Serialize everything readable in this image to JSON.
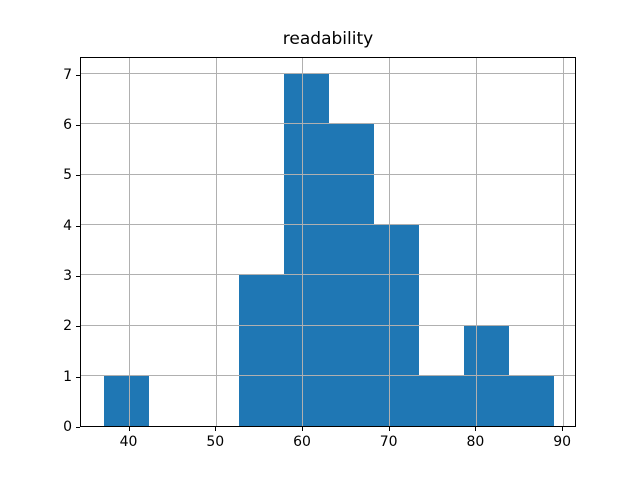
{
  "figure": {
    "title": "readability",
    "background_color": "#ffffff"
  },
  "chart_data": {
    "type": "bar",
    "subtype": "histogram",
    "title": "readability",
    "xlabel": "",
    "ylabel": "",
    "bin_edges": [
      37.0,
      42.2,
      47.4,
      52.6,
      57.8,
      63.0,
      68.2,
      73.4,
      78.6,
      83.8,
      89.0
    ],
    "counts": [
      1,
      0,
      0,
      3,
      7,
      6,
      4,
      1,
      2,
      1
    ],
    "total_count": 25,
    "x_ticks": [
      40,
      50,
      60,
      70,
      80,
      90
    ],
    "y_ticks": [
      0,
      1,
      2,
      3,
      4,
      5,
      6,
      7
    ],
    "xlim": [
      34.4,
      91.6
    ],
    "ylim": [
      0,
      7.35
    ],
    "grid": true,
    "grid_over_bars": true,
    "legend": false,
    "bar_color": "#1f77b4",
    "grid_color": "#b0b0b0",
    "spine_color": "#000000",
    "text_color": "#000000"
  }
}
